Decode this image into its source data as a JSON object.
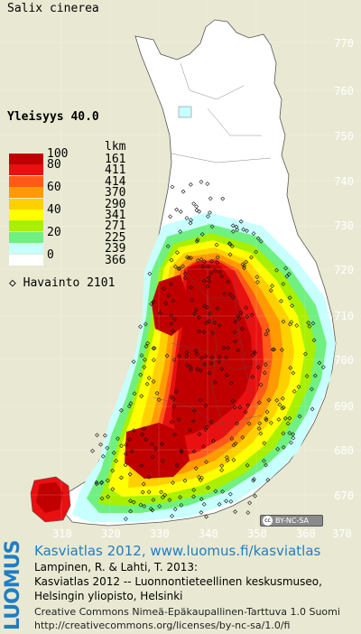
{
  "title": "Salix cinerea",
  "frequency": "Yleisyys  40.0",
  "axes": {
    "y_ticks": [
      "770",
      "760",
      "750",
      "740",
      "730",
      "720",
      "710",
      "700",
      "690",
      "680",
      "670"
    ],
    "x_ticks": [
      "310",
      "320",
      "330",
      "340",
      "350",
      "360",
      "370"
    ]
  },
  "legend": {
    "count_header": "lkm",
    "rows": [
      {
        "pct": "100",
        "count": "161",
        "color": "#c00000"
      },
      {
        "pct": "80",
        "count": "411",
        "color": "#e81010"
      },
      {
        "pct": "",
        "count": "414",
        "color": "#ff5a1a"
      },
      {
        "pct": "60",
        "count": "370",
        "color": "#ff9a00"
      },
      {
        "pct": "",
        "count": "290",
        "color": "#ffd000"
      },
      {
        "pct": "40",
        "count": "341",
        "color": "#ffff00"
      },
      {
        "pct": "",
        "count": "271",
        "color": "#a8f000"
      },
      {
        "pct": "20",
        "count": "225",
        "color": "#70f080"
      },
      {
        "pct": "",
        "count": "239",
        "color": "#c8ffff"
      },
      {
        "pct": "0",
        "count": "366",
        "color": "#ffffff"
      }
    ],
    "observation_label": "Havainto 2101"
  },
  "cc_badge": "BY-NC-SA",
  "brand": "LUOMUS",
  "footer": {
    "link_title": "Kasviatlas 2012, www.luomus.fi/kasviatlas",
    "ref_line1": "Lampinen, R. & Lahti, T. 2013:",
    "ref_line2": "Kasviatlas 2012 -- Luonnontieteellinen keskusmuseo,",
    "ref_line3": "Helsingin yliopisto, Helsinki",
    "license_line1": "Creative Commons Nimeä-Epäkaupallinen-Tarttuva 1.0 Suomi",
    "license_line2": "http://creativecommons.org/licenses/by-nc-sa/1.0/fi"
  }
}
